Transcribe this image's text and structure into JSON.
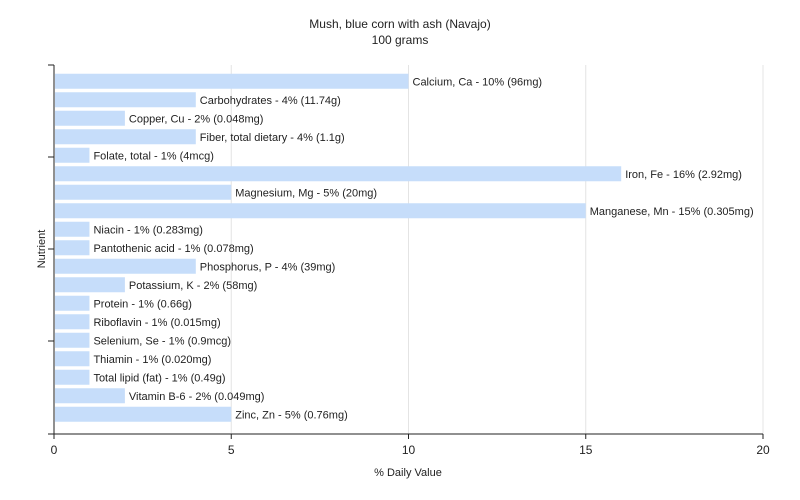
{
  "chart_data": {
    "type": "bar",
    "orientation": "horizontal",
    "title": "Mush, blue corn with ash (Navajo)",
    "subtitle": "100 grams",
    "xlabel": "% Daily Value",
    "ylabel": "Nutrient",
    "xlim": [
      0,
      20
    ],
    "xticks": [
      0,
      5,
      10,
      15,
      20
    ],
    "grid": "vertical",
    "bar_color": "#c6ddfa",
    "categories": [
      "Calcium, Ca",
      "Carbohydrates",
      "Copper, Cu",
      "Fiber, total dietary",
      "Folate, total",
      "Iron, Fe",
      "Magnesium, Mg",
      "Manganese, Mn",
      "Niacin",
      "Pantothenic acid",
      "Phosphorus, P",
      "Potassium, K",
      "Protein",
      "Riboflavin",
      "Selenium, Se",
      "Thiamin",
      "Total lipid (fat)",
      "Vitamin B-6",
      "Zinc, Zn"
    ],
    "values": [
      10,
      4,
      2,
      4,
      1,
      16,
      5,
      15,
      1,
      1,
      4,
      2,
      1,
      1,
      1,
      1,
      1,
      2,
      5
    ],
    "labels": [
      "Calcium, Ca - 10% (96mg)",
      "Carbohydrates - 4% (11.74g)",
      "Copper, Cu - 2% (0.048mg)",
      "Fiber, total dietary - 4% (1.1g)",
      "Folate, total - 1% (4mcg)",
      "Iron, Fe - 16% (2.92mg)",
      "Magnesium, Mg - 5% (20mg)",
      "Manganese, Mn - 15% (0.305mg)",
      "Niacin - 1% (0.283mg)",
      "Pantothenic acid - 1% (0.078mg)",
      "Phosphorus, P - 4% (39mg)",
      "Potassium, K - 2% (58mg)",
      "Protein - 1% (0.66g)",
      "Riboflavin - 1% (0.015mg)",
      "Selenium, Se - 1% (0.9mcg)",
      "Thiamin - 1% (0.020mg)",
      "Total lipid (fat) - 1% (0.49g)",
      "Vitamin B-6 - 2% (0.049mg)",
      "Zinc, Zn - 5% (0.76mg)"
    ]
  }
}
